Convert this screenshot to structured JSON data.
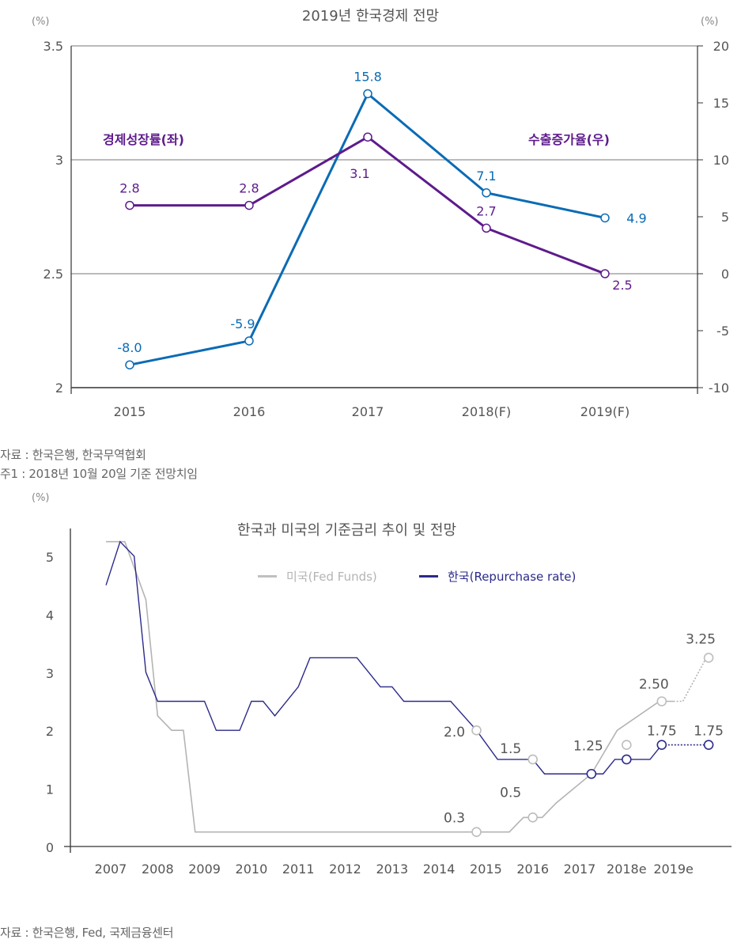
{
  "chart_data": [
    {
      "type": "line",
      "title": "2019년 한국경제 전망",
      "categories": [
        "2015",
        "2016",
        "2017",
        "2018(F)",
        "2019(F)"
      ],
      "left_axis": {
        "unit": "(%)",
        "ylim": [
          2,
          3.5
        ],
        "ticks": [
          "2",
          "2.5",
          "3",
          "3.5"
        ],
        "tick_values": [
          2,
          2.5,
          3,
          3.5
        ]
      },
      "right_axis": {
        "unit": "(%)",
        "ylim": [
          -10,
          20
        ],
        "ticks": [
          "-10",
          "-5",
          "0",
          "5",
          "10",
          "15",
          "20"
        ],
        "tick_values": [
          -10,
          -5,
          0,
          5,
          10,
          15,
          20
        ]
      },
      "grid": "horizontal",
      "series": [
        {
          "name": "경제성장률(좌)",
          "axis": "left",
          "color": "#5e1b8c",
          "values": [
            2.8,
            2.8,
            3.1,
            2.7,
            2.5
          ],
          "labels": [
            "2.8",
            "2.8",
            "3.1",
            "2.7",
            "2.5"
          ]
        },
        {
          "name": "수출증가율(우)",
          "axis": "right",
          "color": "#0a6bb5",
          "values": [
            -8.0,
            -5.9,
            15.8,
            7.1,
            4.9
          ],
          "labels": [
            "-8.0",
            "-5.9",
            "15.8",
            "7.1",
            "4.9"
          ]
        }
      ],
      "notes": [
        "자료 : 한국은행, 한국무역협회",
        "주1 : 2018년 10월 20일 기준 전망치임"
      ]
    },
    {
      "type": "line",
      "title": "한국과 미국의 기준금리 추이 및 전망",
      "y_unit": "(%)",
      "ylim": [
        0,
        5.5
      ],
      "yticks": [
        "0",
        "1",
        "2",
        "3",
        "4",
        "5"
      ],
      "ytick_values": [
        0,
        1,
        2,
        3,
        4,
        5
      ],
      "xticks": [
        "2007",
        "2008",
        "2009",
        "2010",
        "2011",
        "2012",
        "2013",
        "2014",
        "2015",
        "2016",
        "2017",
        "2018e",
        "2019e"
      ],
      "xtick_values": [
        2007,
        2008,
        2009,
        2010,
        2011,
        2012,
        2013,
        2014,
        2015,
        2016,
        2017,
        2018,
        2019
      ],
      "legend_position": "top-center",
      "series": [
        {
          "name": "미국(Fed Funds)",
          "color": "#b4b4b4",
          "x": [
            2006.9,
            2007.3,
            2007.75,
            2008.0,
            2008.3,
            2008.55,
            2008.8,
            2015.5,
            2015.8,
            2016.2,
            2016.5,
            2017.25,
            2017.8,
            2018.7,
            2019.0
          ],
          "y": [
            5.25,
            5.25,
            4.25,
            2.25,
            2.0,
            2.0,
            0.25,
            0.25,
            0.5,
            0.5,
            0.75,
            1.25,
            2.0,
            2.5,
            2.5
          ],
          "forecast": {
            "x": [
              2019.0,
              2019.2,
              2019.7
            ],
            "y": [
              2.5,
              2.5,
              3.25
            ]
          },
          "markers": [
            {
              "x": 2014.8,
              "y": 0.25,
              "label": "0.3"
            },
            {
              "x": 2016.0,
              "y": 0.5,
              "label": "0.5"
            },
            {
              "x": 2018.0,
              "y": 1.75,
              "label": ""
            },
            {
              "x": 2018.75,
              "y": 2.5,
              "label": "2.50"
            },
            {
              "x": 2019.75,
              "y": 3.25,
              "label": "3.25"
            }
          ]
        },
        {
          "name": "한국(Repurchase rate)",
          "color": "#2b2a8a",
          "x": [
            2006.9,
            2007.2,
            2007.5,
            2007.75,
            2008.0,
            2009.0,
            2009.25,
            2009.75,
            2010.0,
            2010.25,
            2010.5,
            2011.0,
            2011.25,
            2012.25,
            2012.75,
            2013.0,
            2013.25,
            2014.25,
            2014.8,
            2015.25,
            2016.0,
            2016.25,
            2017.25,
            2017.5,
            2017.75,
            2018.5,
            2018.75
          ],
          "y": [
            4.5,
            5.25,
            5.0,
            3.0,
            2.5,
            2.5,
            2.0,
            2.0,
            2.5,
            2.5,
            2.25,
            2.75,
            3.25,
            3.25,
            2.75,
            2.75,
            2.5,
            2.5,
            2.0,
            1.5,
            1.5,
            1.25,
            1.25,
            1.25,
            1.5,
            1.5,
            1.75
          ],
          "forecast": {
            "x": [
              2018.75,
              2019.75
            ],
            "y": [
              1.75,
              1.75
            ]
          },
          "markers": [
            {
              "x": 2014.8,
              "y": 2.0,
              "label": "2.0",
              "hollow_gray": true
            },
            {
              "x": 2016.0,
              "y": 1.5,
              "label": "1.5",
              "hollow_gray": true
            },
            {
              "x": 2017.25,
              "y": 1.25,
              "label": "1.25"
            },
            {
              "x": 2018.0,
              "y": 1.5,
              "label": ""
            },
            {
              "x": 2018.75,
              "y": 1.75,
              "label": "1.75"
            },
            {
              "x": 2019.75,
              "y": 1.75,
              "label": "1.75"
            }
          ]
        }
      ],
      "notes": [
        "자료 : 한국은행, Fed, 국제금융센터"
      ]
    }
  ]
}
